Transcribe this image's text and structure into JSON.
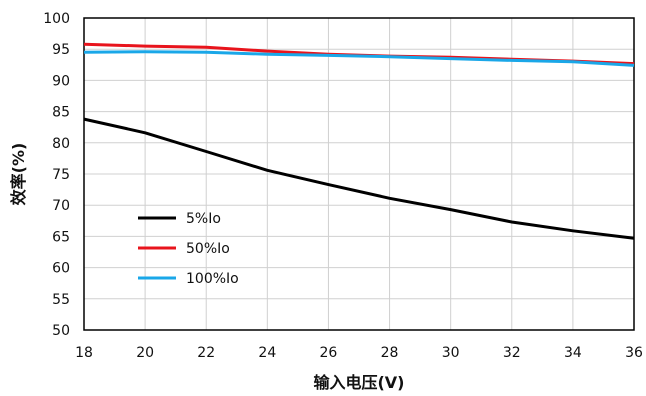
{
  "chart_data": {
    "type": "line",
    "xlabel": "输入电压(V)",
    "ylabel": "效率(%)",
    "xlim": [
      18,
      36
    ],
    "ylim": [
      50,
      100
    ],
    "x_ticks": [
      18,
      20,
      22,
      24,
      26,
      28,
      30,
      32,
      34,
      36
    ],
    "y_ticks": [
      50,
      55,
      60,
      65,
      70,
      75,
      80,
      85,
      90,
      95,
      100
    ],
    "grid": true,
    "legend_position": "lower-left",
    "x": [
      18,
      20,
      22,
      24,
      26,
      28,
      30,
      32,
      34,
      36
    ],
    "series": [
      {
        "name": "5%Io",
        "color": "#000000",
        "values": [
          83.8,
          81.6,
          78.6,
          75.6,
          73.3,
          71.1,
          69.3,
          67.3,
          65.9,
          64.7
        ]
      },
      {
        "name": "50%Io",
        "color": "#e8141c",
        "values": [
          95.8,
          95.5,
          95.3,
          94.7,
          94.2,
          93.9,
          93.7,
          93.4,
          93.1,
          92.7
        ]
      },
      {
        "name": "100%Io",
        "color": "#1aa7e8",
        "values": [
          94.5,
          94.6,
          94.5,
          94.2,
          94.0,
          93.8,
          93.5,
          93.2,
          93.0,
          92.4
        ]
      }
    ]
  }
}
